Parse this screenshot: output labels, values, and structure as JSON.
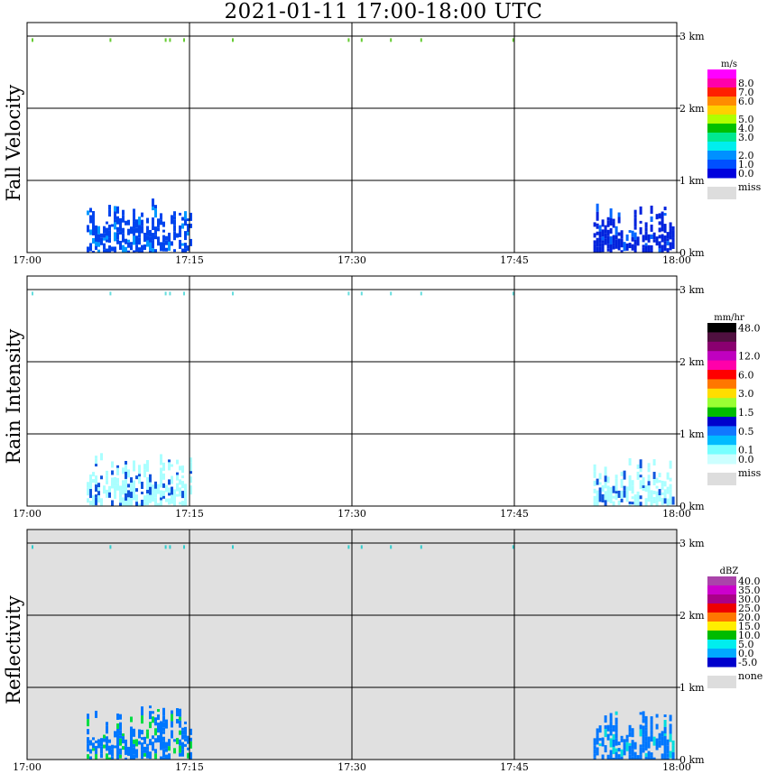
{
  "title": "2021-01-11   17:00-18:00 UTC",
  "chart_data": {
    "type": "heatmap",
    "x_ticks": [
      "17:00",
      "17:15",
      "17:30",
      "17:45",
      "18:00"
    ],
    "y_ticks": [
      "0 km",
      "1 km",
      "2 km",
      "3 km"
    ],
    "ylim_km": [
      0,
      3.2
    ],
    "grid": true,
    "panels": [
      {
        "ylabel": "Fall Velocity",
        "unit": "m/s",
        "background": "#ffffff",
        "colorbar": [
          {
            "color": "#ff00ff",
            "label": ""
          },
          {
            "color": "#ff00aa",
            "label": "8.0"
          },
          {
            "color": "#ff2000",
            "label": "7.0"
          },
          {
            "color": "#ff8c00",
            "label": "6.0"
          },
          {
            "color": "#ffd000",
            "label": ""
          },
          {
            "color": "#b0ff00",
            "label": "5.0"
          },
          {
            "color": "#00c000",
            "label": "4.0"
          },
          {
            "color": "#00e890",
            "label": "3.0"
          },
          {
            "color": "#00eeee",
            "label": ""
          },
          {
            "color": "#0090ff",
            "label": "2.0"
          },
          {
            "color": "#0050ff",
            "label": "1.0"
          },
          {
            "color": "#0000dd",
            "label": "0.0"
          }
        ],
        "miss_label": "miss",
        "echoes": [
          {
            "t0": 5.5,
            "t1": 15.3,
            "h0": 0.0,
            "h1": 0.75,
            "color": "#0044ee",
            "accent": "#0099ff"
          },
          {
            "t0": 52.3,
            "t1": 60.0,
            "h0": 0.0,
            "h1": 0.68,
            "color": "#0022dd",
            "accent": "#0066ff"
          }
        ],
        "top_specks": [
          0.5,
          7.7,
          12.8,
          13.2,
          14.5,
          19.0,
          29.7,
          30.9,
          33.6,
          36.4,
          44.9
        ],
        "speck_color": "#66cc33"
      },
      {
        "ylabel": "Rain Intensity",
        "unit": "mm/hr",
        "background": "#ffffff",
        "colorbar": [
          {
            "color": "#000000",
            "label": "48.0"
          },
          {
            "color": "#501040",
            "label": ""
          },
          {
            "color": "#8a0070",
            "label": ""
          },
          {
            "color": "#c000c0",
            "label": "12.0"
          },
          {
            "color": "#ff00aa",
            "label": ""
          },
          {
            "color": "#ff0000",
            "label": "6.0"
          },
          {
            "color": "#ff7700",
            "label": ""
          },
          {
            "color": "#ffdd00",
            "label": "3.0"
          },
          {
            "color": "#99ff33",
            "label": ""
          },
          {
            "color": "#00bb00",
            "label": "1.5"
          },
          {
            "color": "#0000cc",
            "label": ""
          },
          {
            "color": "#1177ff",
            "label": "0.5"
          },
          {
            "color": "#00bbff",
            "label": ""
          },
          {
            "color": "#77ffff",
            "label": "0.1"
          },
          {
            "color": "#ccffff",
            "label": "0.0"
          }
        ],
        "miss_label": "miss",
        "echoes": [
          {
            "t0": 5.5,
            "t1": 15.3,
            "h0": 0.0,
            "h1": 0.75,
            "color": "#aaffff",
            "accent": "#1155dd"
          },
          {
            "t0": 52.3,
            "t1": 60.0,
            "h0": 0.0,
            "h1": 0.68,
            "color": "#aaffff",
            "accent": "#1155dd"
          }
        ],
        "top_specks": [
          0.5,
          7.7,
          12.8,
          13.2,
          14.5,
          19.0,
          29.7,
          30.9,
          33.6,
          36.4,
          44.9
        ],
        "speck_color": "#66dddd"
      },
      {
        "ylabel": "Reflectivity",
        "unit": "dBZ",
        "background": "#e0e0e0",
        "colorbar": [
          {
            "color": "#aa44aa",
            "label": "40.0"
          },
          {
            "color": "#cc00cc",
            "label": "35.0"
          },
          {
            "color": "#aa0088",
            "label": "30.0"
          },
          {
            "color": "#ee0000",
            "label": "25.0"
          },
          {
            "color": "#ff7700",
            "label": "20.0"
          },
          {
            "color": "#ffee00",
            "label": "15.0"
          },
          {
            "color": "#00bb00",
            "label": "10.0"
          },
          {
            "color": "#00eeee",
            "label": "5.0"
          },
          {
            "color": "#00aaff",
            "label": "0.0"
          },
          {
            "color": "#0000cc",
            "label": "-5.0"
          }
        ],
        "miss_label": "none",
        "echoes": [
          {
            "t0": 5.5,
            "t1": 15.3,
            "h0": 0.0,
            "h1": 0.75,
            "color": "#0077ff",
            "accent": "#00dd44"
          },
          {
            "t0": 52.3,
            "t1": 60.0,
            "h0": 0.0,
            "h1": 0.68,
            "color": "#0077ff",
            "accent": "#00dddd"
          }
        ],
        "top_specks": [
          0.5,
          7.7,
          12.8,
          13.2,
          14.5,
          19.0,
          29.7,
          30.9,
          33.6,
          36.4,
          44.9
        ],
        "speck_color": "#33cccc"
      }
    ]
  }
}
